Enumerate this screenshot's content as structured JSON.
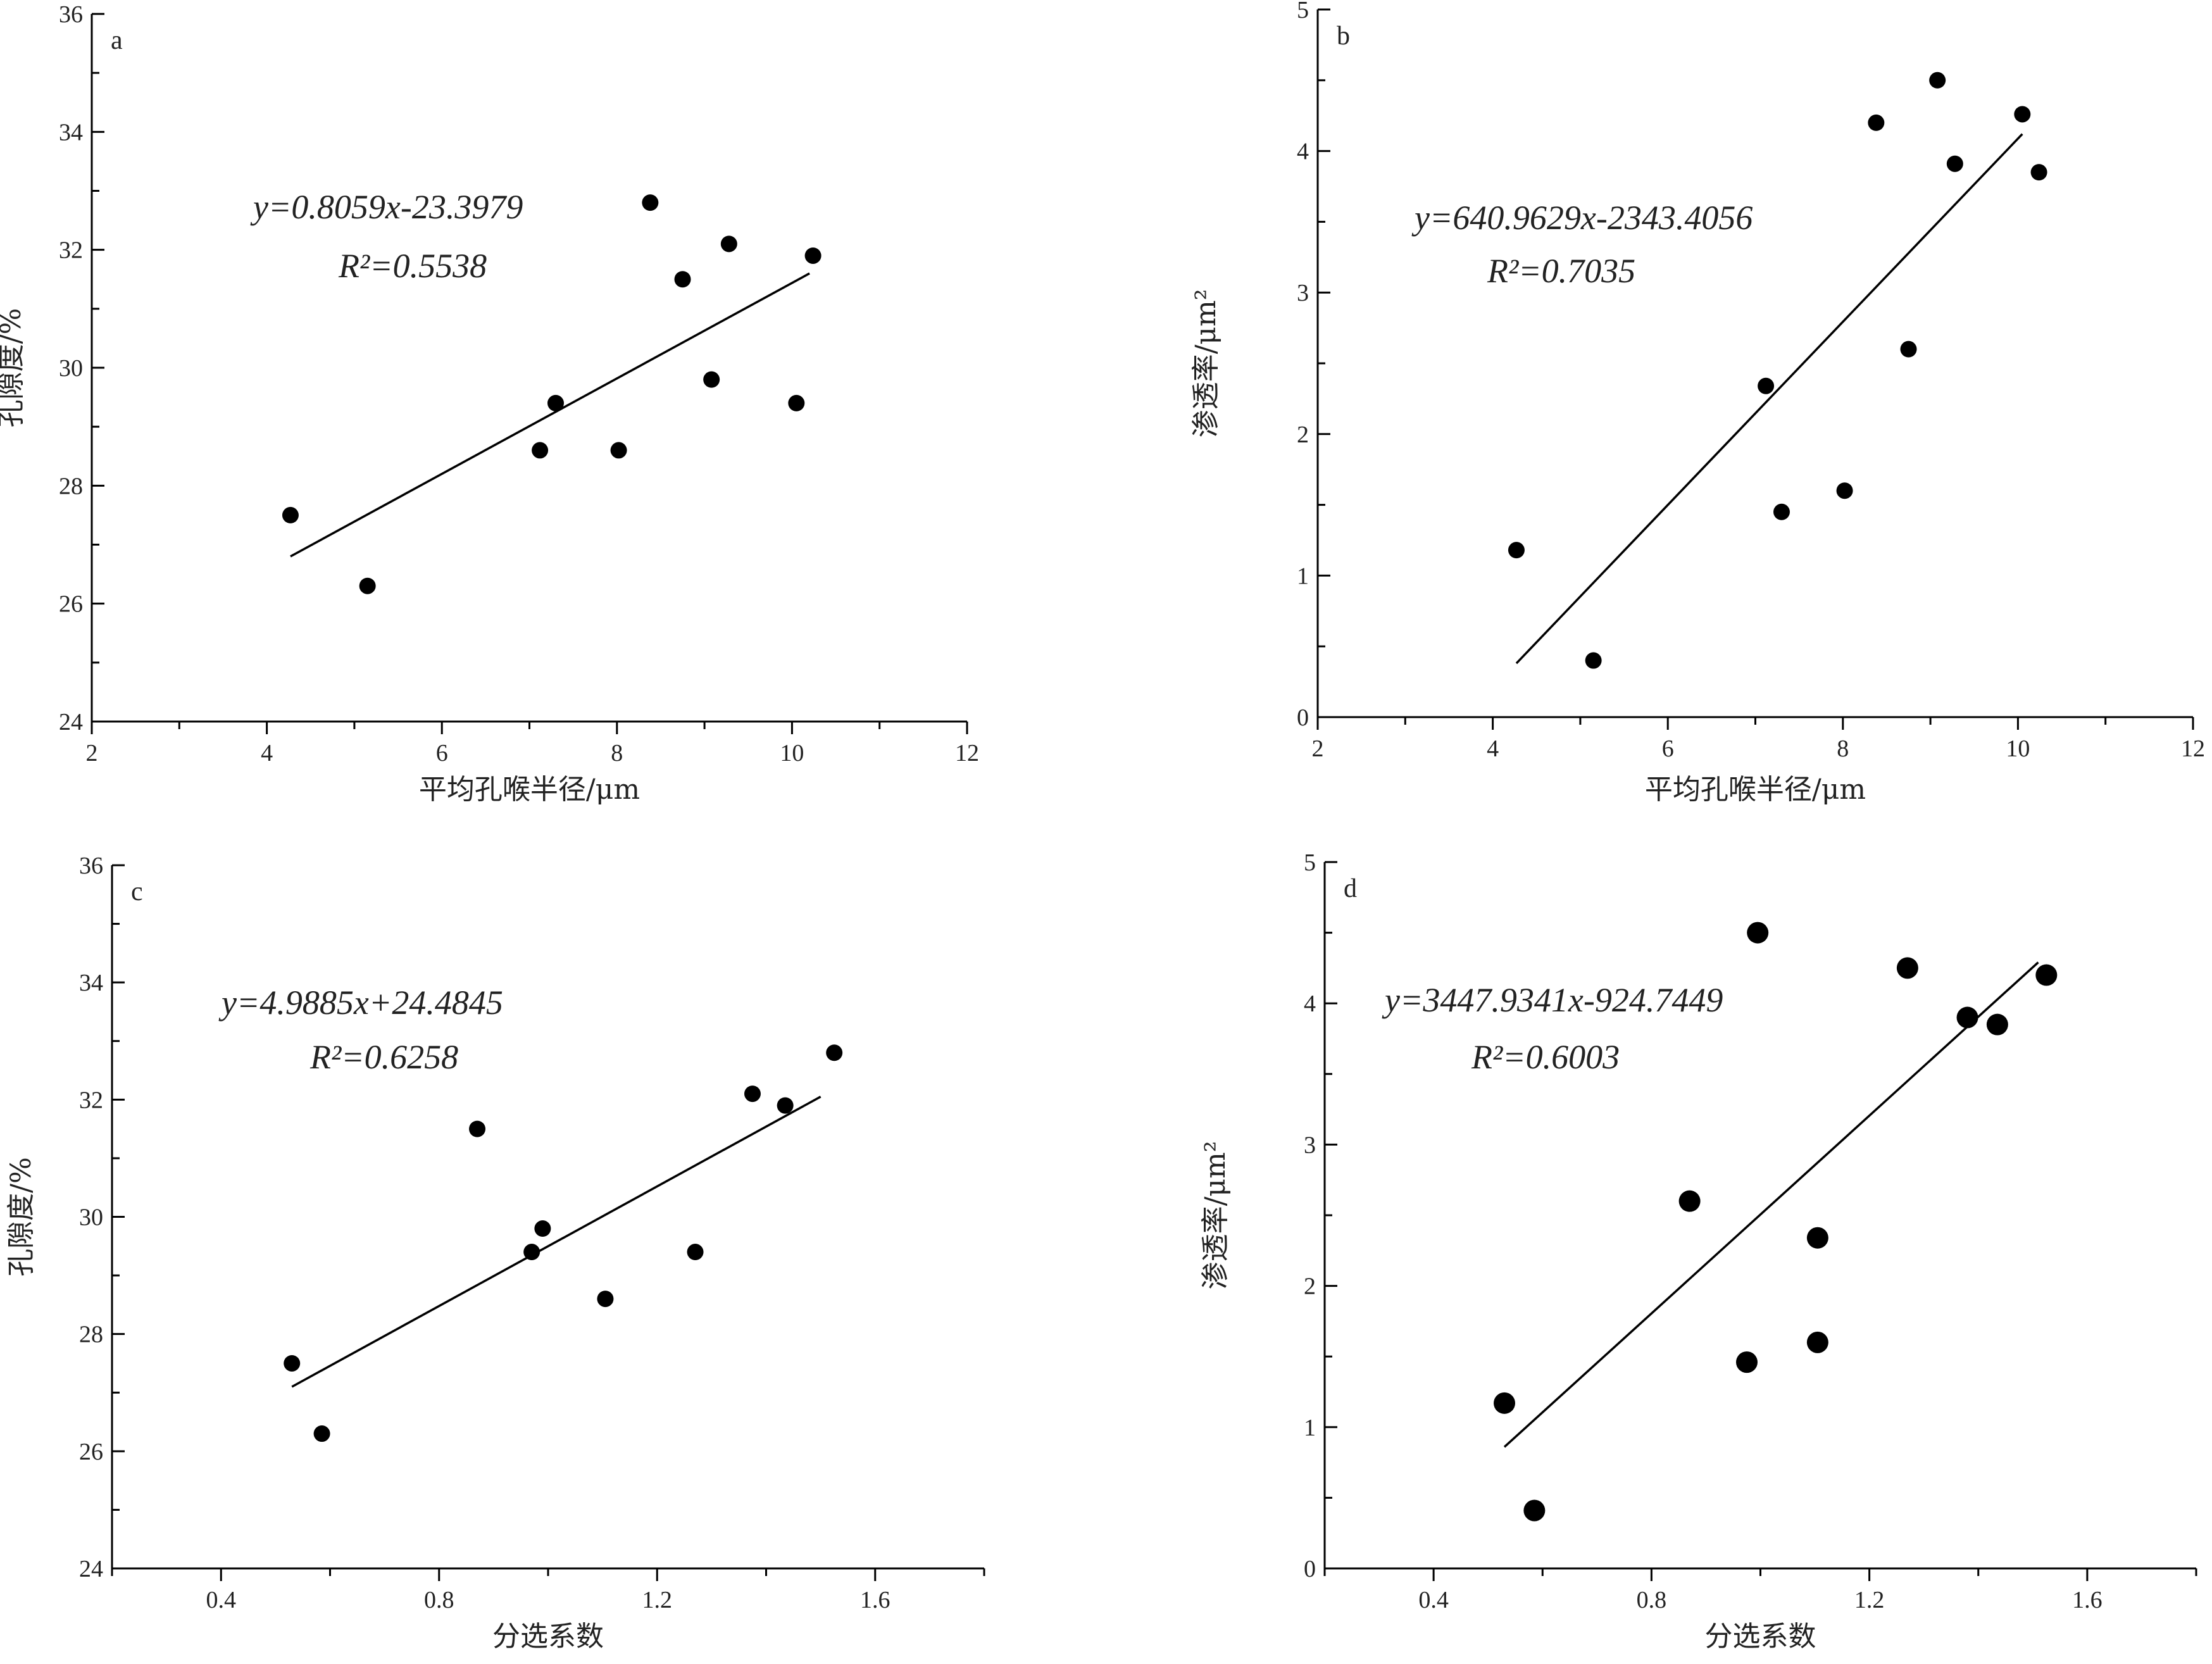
{
  "chart_data": [
    {
      "type": "scatter",
      "panel": "a",
      "xlabel": "平均孔喉半径/μm",
      "ylabel": "孔隙度/%",
      "xlim": [
        2,
        12
      ],
      "ylim": [
        24,
        36
      ],
      "xticks": [
        2,
        4,
        6,
        8,
        10,
        12
      ],
      "yticks": [
        24,
        26,
        28,
        30,
        32,
        34,
        36
      ],
      "equation": "y=0.8059x-23.3979",
      "r2": "R²=0.5538",
      "fit": [
        [
          4.27,
          26.8
        ],
        [
          10.2,
          31.6
        ]
      ],
      "points": [
        [
          4.27,
          27.5
        ],
        [
          5.15,
          26.3
        ],
        [
          7.12,
          28.6
        ],
        [
          7.3,
          29.4
        ],
        [
          8.02,
          28.6
        ],
        [
          8.38,
          32.8
        ],
        [
          8.75,
          31.5
        ],
        [
          9.08,
          29.8
        ],
        [
          9.28,
          32.1
        ],
        [
          10.05,
          29.4
        ],
        [
          10.24,
          31.9
        ]
      ]
    },
    {
      "type": "scatter",
      "panel": "b",
      "xlabel": "平均孔喉半径/μm",
      "ylabel": "渗透率/μm²",
      "xlim": [
        2,
        12
      ],
      "ylim": [
        0,
        5
      ],
      "xticks": [
        2,
        4,
        6,
        8,
        10,
        12
      ],
      "yticks": [
        0,
        1,
        2,
        3,
        4,
        5
      ],
      "equation": "y=640.9629x-2343.4056",
      "r2": "R²=0.7035",
      "fit": [
        [
          4.27,
          0.38
        ],
        [
          10.05,
          4.12
        ]
      ],
      "points": [
        [
          4.27,
          1.18
        ],
        [
          5.15,
          0.4
        ],
        [
          7.12,
          2.34
        ],
        [
          7.3,
          1.45
        ],
        [
          8.02,
          1.6
        ],
        [
          8.38,
          4.2
        ],
        [
          8.75,
          2.6
        ],
        [
          9.08,
          4.5
        ],
        [
          9.28,
          3.91
        ],
        [
          10.05,
          4.26
        ],
        [
          10.24,
          3.85
        ]
      ]
    },
    {
      "type": "scatter",
      "panel": "c",
      "xlabel": "分选系数",
      "ylabel": "孔隙度/%",
      "xlim": [
        0.2,
        1.8
      ],
      "ylim": [
        24,
        36
      ],
      "xticks": [
        0.4,
        0.8,
        1.2,
        1.6
      ],
      "yticks": [
        24,
        26,
        28,
        30,
        32,
        34,
        36
      ],
      "equation": "y=4.9885x+24.4845",
      "r2": "R²=0.6258",
      "fit": [
        [
          0.53,
          27.1
        ],
        [
          1.5,
          32.05
        ]
      ],
      "points": [
        [
          0.53,
          27.5
        ],
        [
          0.585,
          26.3
        ],
        [
          0.87,
          31.5
        ],
        [
          0.97,
          29.4
        ],
        [
          0.99,
          29.8
        ],
        [
          1.105,
          28.6
        ],
        [
          1.27,
          29.4
        ],
        [
          1.375,
          32.1
        ],
        [
          1.435,
          31.9
        ],
        [
          1.525,
          32.8
        ]
      ]
    },
    {
      "type": "scatter",
      "panel": "d",
      "xlabel": "分选系数",
      "ylabel": "渗透率/μm²",
      "xlim": [
        0.2,
        1.8
      ],
      "ylim": [
        0,
        5
      ],
      "xticks": [
        0.4,
        0.8,
        1.2,
        1.6
      ],
      "yticks": [
        0,
        1,
        2,
        3,
        4,
        5
      ],
      "equation": "y=3447.9341x-924.7449",
      "r2": "R²=0.6003",
      "fit": [
        [
          0.53,
          0.86
        ],
        [
          1.51,
          4.29
        ]
      ],
      "points": [
        [
          0.53,
          1.17
        ],
        [
          0.585,
          0.41
        ],
        [
          0.87,
          2.6
        ],
        [
          0.975,
          1.46
        ],
        [
          0.995,
          4.5
        ],
        [
          1.105,
          2.34
        ],
        [
          1.105,
          1.6
        ],
        [
          1.27,
          4.25
        ],
        [
          1.38,
          3.9
        ],
        [
          1.435,
          3.85
        ],
        [
          1.525,
          4.2
        ]
      ]
    }
  ]
}
